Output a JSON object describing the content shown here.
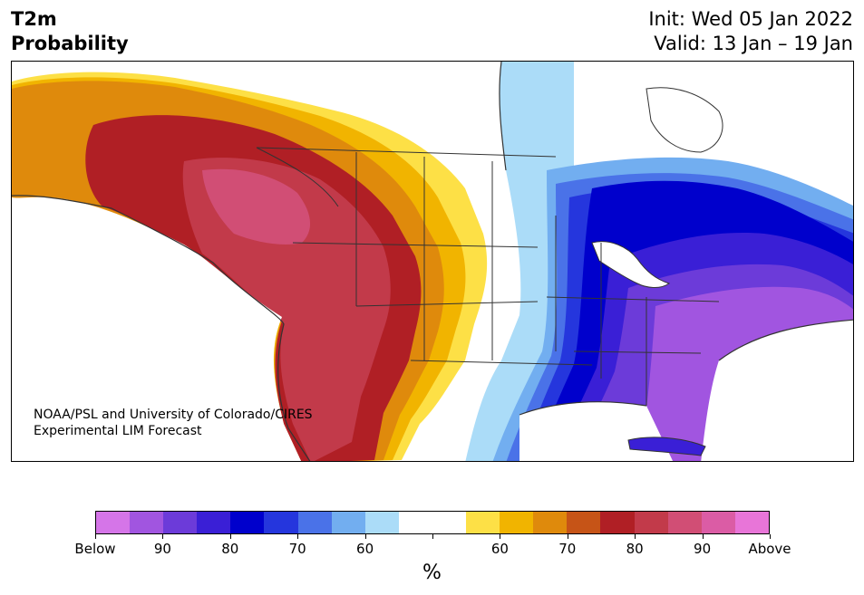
{
  "header": {
    "title_line1": "T2m",
    "title_line2": "Probability",
    "init": "Init: Wed 05 Jan 2022",
    "valid": "Valid: 13 Jan – 19 Jan"
  },
  "credit": {
    "line1": "NOAA/PSL and University of Colorado/CIRES",
    "line2": "Experimental LIM Forecast"
  },
  "colorbar": {
    "colors": [
      "#d575e8",
      "#a155e0",
      "#6c3bd9",
      "#3a1fd6",
      "#0000cc",
      "#2536dd",
      "#4a72e8",
      "#72aef0",
      "#abdcf8",
      "#ffffff",
      "#ffffff",
      "#fde046",
      "#f1b400",
      "#df8a0c",
      "#c65417",
      "#b01f25",
      "#c23a4a",
      "#d14e75",
      "#db5ca5",
      "#e875d8"
    ],
    "tick_labels": [
      "Below",
      "90",
      "80",
      "70",
      "60",
      "",
      "60",
      "70",
      "80",
      "90",
      "Above"
    ],
    "unit": "%"
  },
  "map": {
    "region": "North America",
    "legend_below_color": "#0000cc",
    "legend_above_color": "#b01f25"
  }
}
